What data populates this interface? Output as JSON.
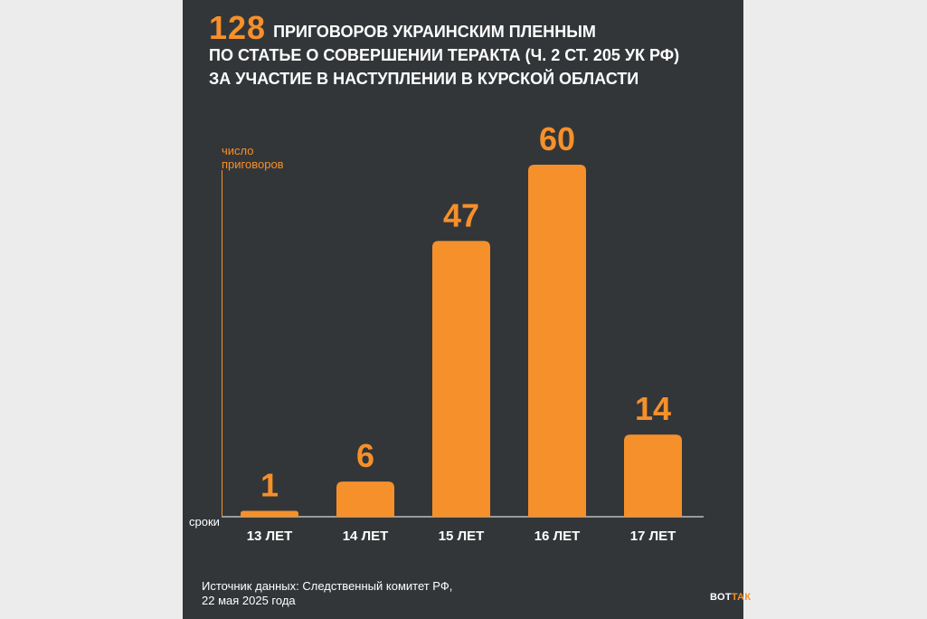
{
  "title": {
    "number": "128",
    "line1": "ПРИГОВОРОВ УКРАИНСКИМ ПЛЕННЫМ",
    "line2": "ПО СТАТЬЕ О СОВЕРШЕНИИ ТЕРАКТА (Ч. 2 СТ. 205 УК РФ)",
    "line3": "ЗА УЧАСТИЕ В НАСТУПЛЕНИИ В КУРСКОЙ ОБЛАСТИ"
  },
  "colors": {
    "bar": "#f6902b",
    "background": "#333638",
    "page": "#ececec",
    "text": "#ffffff"
  },
  "chart_data": {
    "type": "bar",
    "ylabel_line1": "число",
    "ylabel_line2": "приговоров",
    "xlabel": "сроки",
    "categories": [
      "13 ЛЕТ",
      "14 ЛЕТ",
      "15 ЛЕТ",
      "16 ЛЕТ",
      "17 ЛЕТ"
    ],
    "values": [
      1,
      6,
      47,
      60,
      14
    ],
    "ylim": [
      0,
      60
    ],
    "grid": false,
    "legend": "none"
  },
  "footer": {
    "line1": "Источник данных: Следственный комитет РФ,",
    "line2": "22 мая 2025 года"
  },
  "logo": {
    "part1": "ВОТ",
    "part2": "ТАК"
  }
}
